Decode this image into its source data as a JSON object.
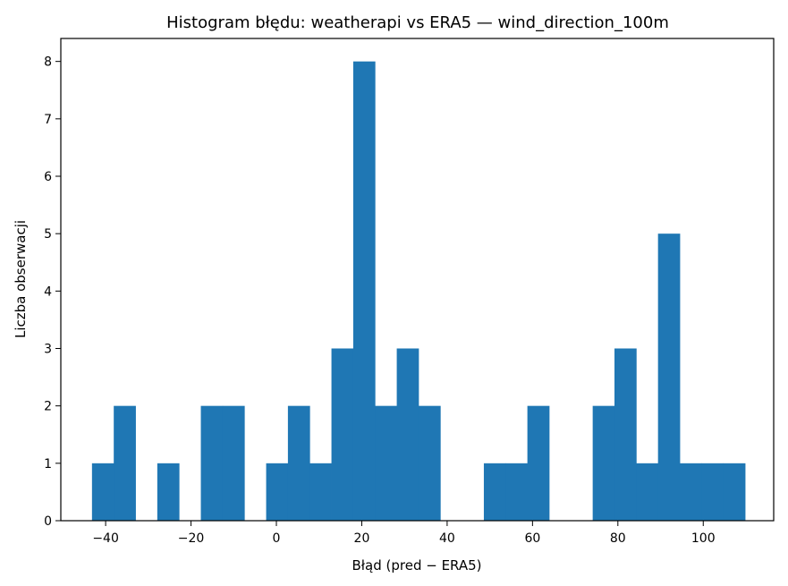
{
  "chart_data": {
    "type": "bar",
    "title": "Histogram błędu: weatherapi vs ERA5 — wind_direction_100m",
    "xlabel": "Błąd (pred − ERA5)",
    "ylabel": "Liczba obserwacji",
    "xlim": [
      -50.5,
      116.5
    ],
    "ylim": [
      0,
      8.4
    ],
    "xticks": [
      -40,
      -20,
      0,
      20,
      40,
      60,
      80,
      100
    ],
    "xtick_labels": [
      "−40",
      "−20",
      "0",
      "20",
      "40",
      "60",
      "80",
      "100"
    ],
    "yticks": [
      0,
      1,
      2,
      3,
      4,
      5,
      6,
      7,
      8
    ],
    "ytick_labels": [
      "0",
      "1",
      "2",
      "3",
      "4",
      "5",
      "6",
      "7",
      "8"
    ],
    "bin_start": -43.2,
    "bin_width": 5.1,
    "counts": [
      1,
      2,
      0,
      1,
      0,
      2,
      2,
      0,
      1,
      2,
      1,
      3,
      8,
      2,
      3,
      2,
      0,
      0,
      1,
      1,
      2,
      0,
      0,
      2,
      3,
      1,
      5,
      1,
      1,
      1
    ],
    "bar_color": "#1f77b4",
    "grid": false,
    "legend": "none"
  }
}
